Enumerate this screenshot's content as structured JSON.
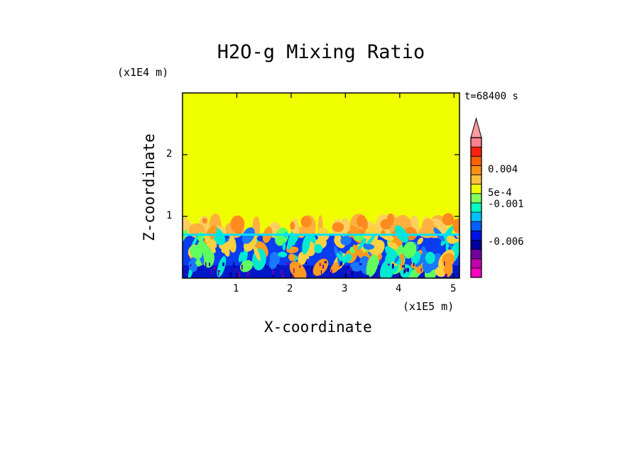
{
  "title": "H2O-g Mixing Ratio",
  "x_axis": {
    "label": "X-coordinate",
    "multiplier": "(x1E5 m)",
    "ticks": [
      "1",
      "2",
      "3",
      "4",
      "5"
    ],
    "range": [
      0,
      5.1
    ]
  },
  "z_axis": {
    "label": "Z-coordinate",
    "multiplier": "(x1E4 m)",
    "ticks": [
      "1",
      "2"
    ],
    "range": [
      0,
      3.0
    ]
  },
  "time_label": "t=68400 s",
  "colorbar": {
    "labels": [
      "0.004",
      "5e-4",
      "-0.001",
      "-0.006"
    ],
    "colors": [
      "#ff00c0",
      "#c000a8",
      "#7000a0",
      "#0000a0",
      "#0010e0",
      "#0060ff",
      "#00c0ff",
      "#00ffc0",
      "#80ff60",
      "#f0ff00",
      "#ffc040",
      "#ff9010",
      "#ff6000",
      "#ff2010",
      "#ff8090"
    ],
    "extend_top_color": "#ff9aa0"
  },
  "chart_data": {
    "type": "heatmap",
    "title": "H2O-g Mixing Ratio",
    "xlabel": "X-coordinate",
    "ylabel": "Z-coordinate",
    "x_units": "x1E5 m",
    "z_units": "x1E4 m",
    "xlim": [
      0,
      5.1
    ],
    "ylim": [
      0,
      3.0
    ],
    "xticks": [
      1,
      2,
      3,
      4,
      5
    ],
    "yticks": [
      1,
      2
    ],
    "background_level_color": "#f0ff00",
    "boundary_layer_top_z": 0.72,
    "plume_top_z": 1.05,
    "colorbar_tick_values": [
      0.004,
      0.0005,
      -0.001,
      -0.006
    ],
    "time": "t=68400 s"
  }
}
